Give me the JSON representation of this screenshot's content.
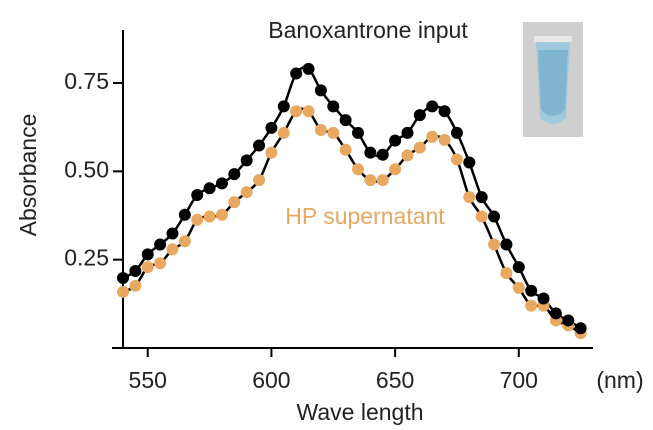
{
  "chart_data": {
    "type": "scatter",
    "x_label": "Wave length",
    "x_unit": "(nm)",
    "y_label": "Absorbance",
    "x": [
      540,
      545,
      550,
      555,
      560,
      565,
      570,
      575,
      580,
      585,
      590,
      595,
      600,
      605,
      610,
      615,
      620,
      625,
      630,
      635,
      640,
      645,
      650,
      655,
      660,
      665,
      670,
      675,
      680,
      685,
      690,
      695,
      700,
      705,
      710,
      715,
      720,
      725
    ],
    "series": [
      {
        "name": "Banoxantrone input",
        "color": "#000000",
        "values": [
          0.198,
          0.218,
          0.265,
          0.293,
          0.324,
          0.377,
          0.433,
          0.452,
          0.466,
          0.492,
          0.531,
          0.573,
          0.623,
          0.684,
          0.777,
          0.79,
          0.729,
          0.684,
          0.645,
          0.609,
          0.553,
          0.547,
          0.587,
          0.609,
          0.659,
          0.684,
          0.67,
          0.609,
          0.525,
          0.427,
          0.372,
          0.293,
          0.229,
          0.162,
          0.14,
          0.098,
          0.078,
          0.056
        ]
      },
      {
        "name": "HP supernatant",
        "color": "#e8a860",
        "values": [
          0.159,
          0.176,
          0.229,
          0.24,
          0.279,
          0.302,
          0.363,
          0.372,
          0.377,
          0.413,
          0.441,
          0.475,
          0.553,
          0.609,
          0.67,
          0.67,
          0.617,
          0.609,
          0.561,
          0.506,
          0.475,
          0.475,
          0.506,
          0.545,
          0.567,
          0.598,
          0.589,
          0.534,
          0.427,
          0.372,
          0.293,
          0.212,
          0.17,
          0.12,
          0.12,
          0.078,
          0.064,
          0.042
        ]
      }
    ],
    "xlim": [
      540,
      730
    ],
    "xticks": [
      550,
      600,
      650,
      700
    ],
    "ylim": [
      0,
      0.9
    ],
    "yticks": [
      0.25,
      {
        "value": 0.5,
        "label": "0.50"
      },
      0.75
    ]
  }
}
